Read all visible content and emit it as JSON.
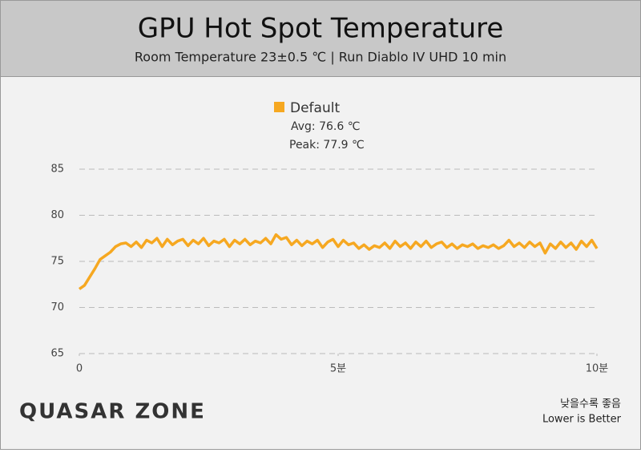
{
  "chart_data": {
    "type": "line",
    "title": "GPU Hot Spot Temperature",
    "subtitle": "Room Temperature 23±0.5 ℃  |  Run Diablo IV UHD 10 min",
    "annotations": [
      "Avg: 76.6 ℃",
      "Peak: 77.9 ℃"
    ],
    "footer": {
      "logo": "QUASAR ZONE",
      "note_ko": "낮을수록 좋음",
      "note_en": "Lower is Better"
    },
    "x": [
      0,
      0.1,
      0.2,
      0.3,
      0.4,
      0.5,
      0.6,
      0.7,
      0.8,
      0.9,
      1,
      1.1,
      1.2,
      1.3,
      1.4,
      1.5,
      1.6,
      1.7,
      1.8,
      1.9,
      2,
      2.1,
      2.2,
      2.3,
      2.4,
      2.5,
      2.6,
      2.7,
      2.8,
      2.9,
      3,
      3.1,
      3.2,
      3.3,
      3.4,
      3.5,
      3.6,
      3.7,
      3.8,
      3.9,
      4,
      4.1,
      4.2,
      4.3,
      4.4,
      4.5,
      4.6,
      4.7,
      4.8,
      4.9,
      5,
      5.1,
      5.2,
      5.3,
      5.4,
      5.5,
      5.6,
      5.7,
      5.8,
      5.9,
      6,
      6.1,
      6.2,
      6.3,
      6.4,
      6.5,
      6.6,
      6.7,
      6.8,
      6.9,
      7,
      7.1,
      7.2,
      7.3,
      7.4,
      7.5,
      7.6,
      7.7,
      7.8,
      7.9,
      8,
      8.1,
      8.2,
      8.3,
      8.4,
      8.5,
      8.6,
      8.7,
      8.8,
      8.9,
      9,
      9.1,
      9.2,
      9.3,
      9.4,
      9.5,
      9.6,
      9.7,
      9.8,
      9.9,
      10
    ],
    "series": [
      {
        "name": "Default",
        "color": "#f6a821",
        "values": [
          72.0,
          72.4,
          73.3,
          74.2,
          75.2,
          75.6,
          76.0,
          76.6,
          76.9,
          77.0,
          76.6,
          77.1,
          76.5,
          77.3,
          77.0,
          77.5,
          76.6,
          77.4,
          76.8,
          77.2,
          77.4,
          76.7,
          77.3,
          76.9,
          77.5,
          76.7,
          77.2,
          77.0,
          77.4,
          76.6,
          77.3,
          76.9,
          77.4,
          76.8,
          77.2,
          77.0,
          77.5,
          76.9,
          77.9,
          77.4,
          77.6,
          76.8,
          77.3,
          76.7,
          77.2,
          76.9,
          77.3,
          76.5,
          77.1,
          77.4,
          76.6,
          77.3,
          76.8,
          77.0,
          76.4,
          76.8,
          76.3,
          76.7,
          76.5,
          77.0,
          76.4,
          77.2,
          76.6,
          77.0,
          76.4,
          77.1,
          76.6,
          77.2,
          76.5,
          76.9,
          77.1,
          76.5,
          76.9,
          76.4,
          76.8,
          76.6,
          76.9,
          76.4,
          76.7,
          76.5,
          76.8,
          76.4,
          76.7,
          77.3,
          76.6,
          77.0,
          76.5,
          77.1,
          76.6,
          77.0,
          75.9,
          76.9,
          76.4,
          77.1,
          76.5,
          77.0,
          76.3,
          77.2,
          76.6,
          77.3,
          76.4
        ]
      }
    ],
    "xlim": [
      0,
      10
    ],
    "xticks": [
      0,
      {
        "value": 5,
        "label": "5분"
      },
      {
        "value": 10,
        "label": "10분"
      }
    ],
    "ylim": [
      65,
      85
    ],
    "yticks": [
      65,
      70,
      75,
      80,
      85
    ],
    "grid": true
  }
}
